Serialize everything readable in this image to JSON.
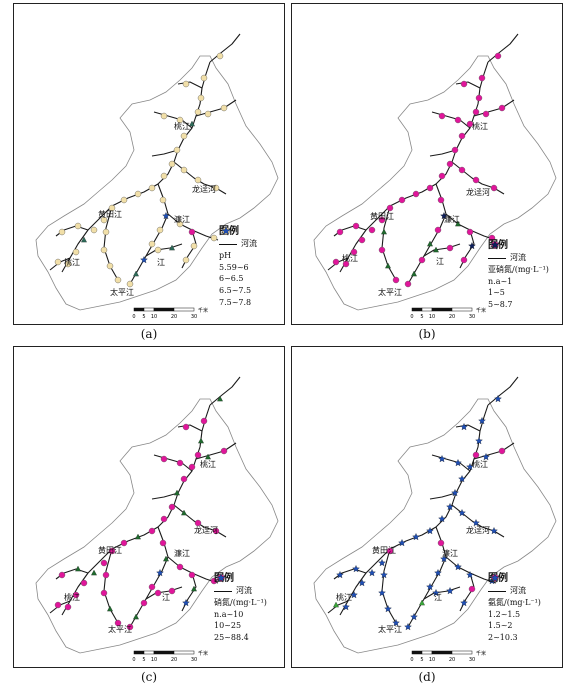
{
  "panels": [
    {
      "caption": "(a)",
      "legend": {
        "title": "图例",
        "river_label": "河流",
        "variable": "pH",
        "classes": [
          {
            "label": "5.59~6",
            "shape": "circle",
            "color": "#e0169a"
          },
          {
            "label": "6~6.5",
            "shape": "triangle",
            "color": "#2e6b59"
          },
          {
            "label": "6.5~7.5",
            "shape": "circle",
            "color": "#f1dfa8"
          },
          {
            "label": "7.5~7.8",
            "shape": "star",
            "color": "#1f4fb5"
          }
        ]
      },
      "place_labels": {
        "taojiang_n": "桃江",
        "longtuhe": "龙迳河",
        "huangtianjiang": "黄田江",
        "lianjiang": "濂江",
        "taojiang_s": "桃江",
        "jiang": "江",
        "taipingjiang": "太平江"
      },
      "scale": {
        "ticks": [
          "0",
          "5",
          "10",
          "20",
          "30"
        ],
        "unit": "千米"
      },
      "dominant": "#f1dfa8"
    },
    {
      "caption": "(b)",
      "legend": {
        "title": "图例",
        "river_label": "河流",
        "variable": "亚硝氮/(mg·L⁻¹)",
        "classes": [
          {
            "label": "n.a~1",
            "shape": "circle",
            "color": "#e0169a"
          },
          {
            "label": "1~5",
            "shape": "triangle",
            "color": "#1f6b2e"
          },
          {
            "label": "5~8.7",
            "shape": "star",
            "color": "#0d1f5c"
          }
        ]
      },
      "place_labels": {
        "taojiang_n": "桃江",
        "longtuhe": "龙迳河",
        "huangtianjiang": "黄田江",
        "lianjiang": "濂江",
        "taojiang_s": "桃江",
        "jiang": "江",
        "taipingjiang": "太平江"
      },
      "scale": {
        "ticks": [
          "0",
          "5",
          "10",
          "20",
          "30"
        ],
        "unit": "千米"
      },
      "dominant": "#e0169a"
    },
    {
      "caption": "(c)",
      "legend": {
        "title": "图例",
        "river_label": "河流",
        "variable": "硝氮/(mg·L⁻¹)",
        "classes": [
          {
            "label": "n.a~10",
            "shape": "circle",
            "color": "#e0169a"
          },
          {
            "label": "10~25",
            "shape": "triangle",
            "color": "#1f6b2e"
          },
          {
            "label": "25~88.4",
            "shape": "star",
            "color": "#1f4fb5"
          }
        ]
      },
      "place_labels": {
        "taojiang_n": "桃江",
        "longtuhe": "龙迳河",
        "huangtianjiang": "黄田江",
        "lianjiang": "濂江",
        "taojiang_s": "桃江",
        "jiang": "江",
        "taipingjiang": "太平江"
      },
      "scale": {
        "ticks": [
          "0",
          "5",
          "10",
          "20",
          "30"
        ],
        "unit": "千米"
      },
      "dominant": "#e0169a"
    },
    {
      "caption": "(d)",
      "legend": {
        "title": "图例",
        "river_label": "河流",
        "variable": "氨氮/(mg·L⁻¹)",
        "classes": [
          {
            "label": "1.2~1.5",
            "shape": "circle",
            "color": "#e0169a"
          },
          {
            "label": "1.5~2",
            "shape": "triangle",
            "color": "#3aa83a"
          },
          {
            "label": "2~10.3",
            "shape": "star",
            "color": "#1f4fb5"
          }
        ]
      },
      "place_labels": {
        "taojiang_n": "桃江",
        "longtuhe": "龙迳河",
        "huangtianjiang": "黄田江",
        "lianjiang": "濂江",
        "taojiang_s": "桃江",
        "jiang": "江",
        "taipingjiang": "太平江"
      },
      "scale": {
        "ticks": [
          "0",
          "5",
          "10",
          "20",
          "30"
        ],
        "unit": "千米"
      },
      "dominant": "#1f4fb5"
    }
  ]
}
